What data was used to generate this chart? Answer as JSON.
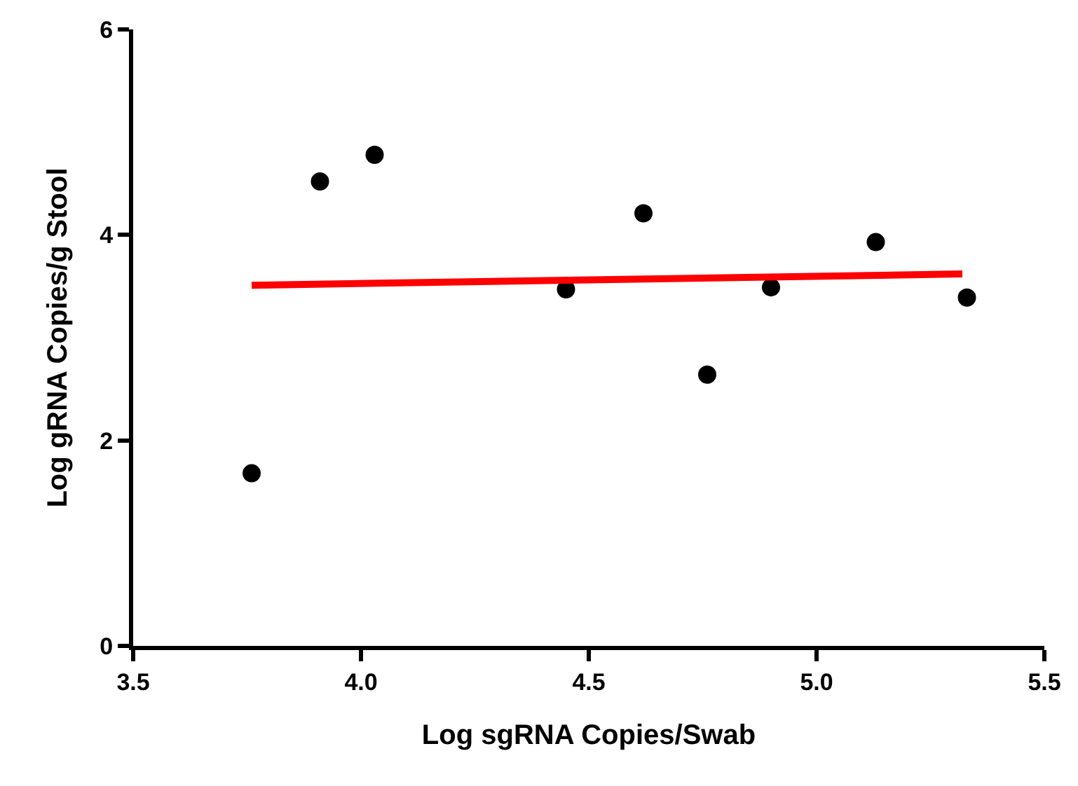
{
  "chart_data": {
    "type": "scatter",
    "xlabel": "Log sgRNA Copies/Swab",
    "ylabel": "Log gRNA Copies/g Stool",
    "xlim": [
      3.5,
      5.5
    ],
    "xticks": [
      {
        "value": 3.5,
        "label": "3.5"
      },
      {
        "value": 4.0,
        "label": "4.0"
      },
      {
        "value": 4.5,
        "label": "4.5"
      },
      {
        "value": 5.0,
        "label": "5.0"
      },
      {
        "value": 5.5,
        "label": "5.5"
      }
    ],
    "ylim": [
      0,
      6
    ],
    "yticks": [
      0,
      2,
      4,
      6
    ],
    "marker": "circle",
    "series": [
      {
        "color": "#000000",
        "x": [
          3.76,
          3.91,
          4.03,
          4.45,
          4.62,
          4.76,
          4.9,
          5.13,
          5.33
        ],
        "values": [
          1.68,
          4.52,
          4.78,
          3.47,
          4.21,
          2.64,
          3.49,
          3.93,
          3.39
        ]
      },
      {
        "type": "line",
        "marker": "none",
        "color": "#ff0000",
        "x": [
          3.76,
          5.32
        ],
        "values": [
          3.51,
          3.62
        ]
      }
    ]
  }
}
